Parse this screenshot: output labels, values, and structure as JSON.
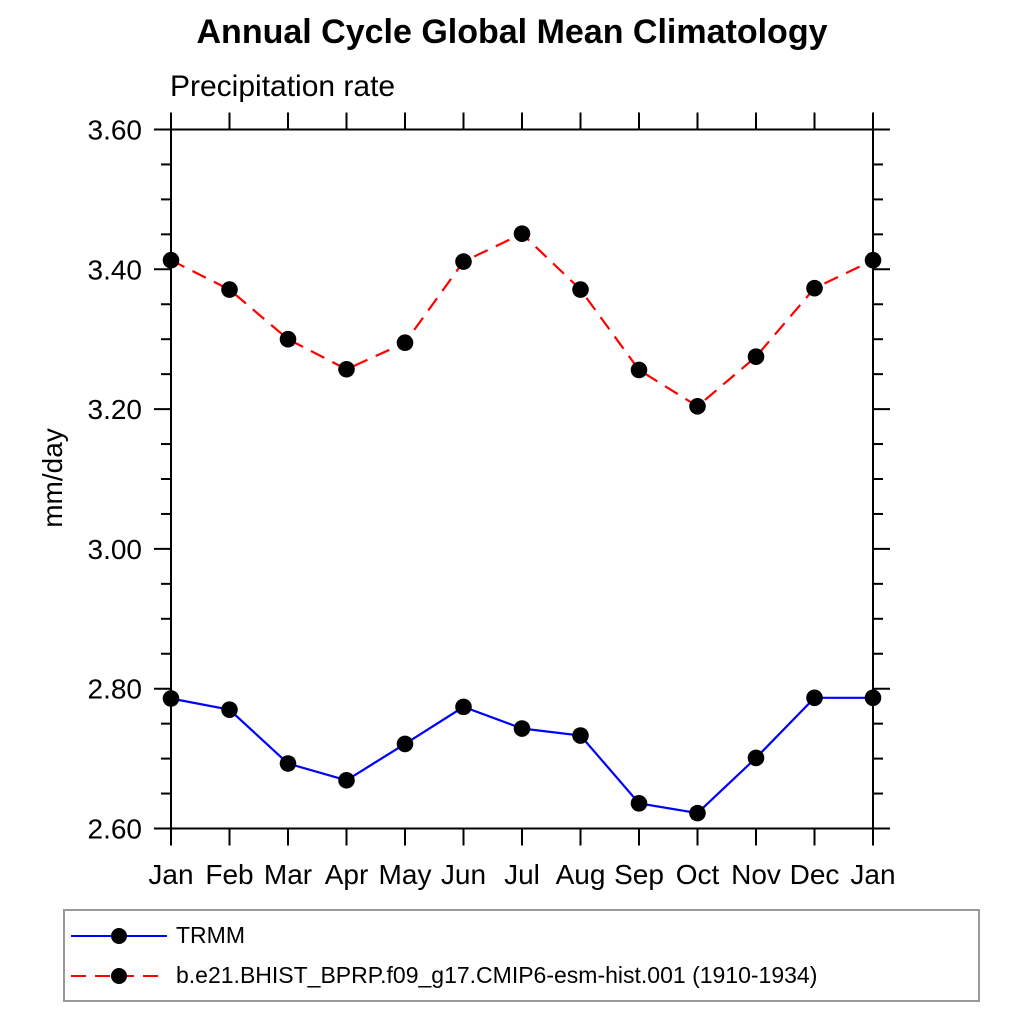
{
  "chart_data": {
    "type": "line",
    "title": "Annual Cycle Global Mean Climatology",
    "subtitle": "Precipitation rate",
    "ylabel": "mm/day",
    "xlabel": "",
    "categories": [
      "Jan",
      "Feb",
      "Mar",
      "Apr",
      "May",
      "Jun",
      "Jul",
      "Aug",
      "Sep",
      "Oct",
      "Nov",
      "Dec",
      "Jan"
    ],
    "ylim": [
      2.6,
      3.6
    ],
    "ytick_major_step": 0.2,
    "ytick_minor_step": 0.05,
    "ytick_labels": [
      "2.60",
      "2.80",
      "3.00",
      "3.20",
      "3.40",
      "3.60"
    ],
    "grid": false,
    "legend_position": "bottom-left",
    "axis_color": "#000000",
    "marker_shape": "filled-circle",
    "series": [
      {
        "name": "TRMM",
        "color": "#0000ff",
        "line_style": "solid",
        "marker_color": "#000000",
        "values": [
          2.786,
          2.77,
          2.693,
          2.669,
          2.721,
          2.774,
          2.743,
          2.733,
          2.636,
          2.622,
          2.701,
          2.787,
          2.787
        ]
      },
      {
        "name": "b.e21.BHIST_BPRP.f09_g17.CMIP6-esm-hist.001 (1910-1934)",
        "color": "#ff0000",
        "line_style": "dashed",
        "marker_color": "#000000",
        "values": [
          3.413,
          3.371,
          3.3,
          3.257,
          3.295,
          3.411,
          3.451,
          3.371,
          3.256,
          3.204,
          3.275,
          3.373,
          3.413
        ]
      }
    ]
  }
}
